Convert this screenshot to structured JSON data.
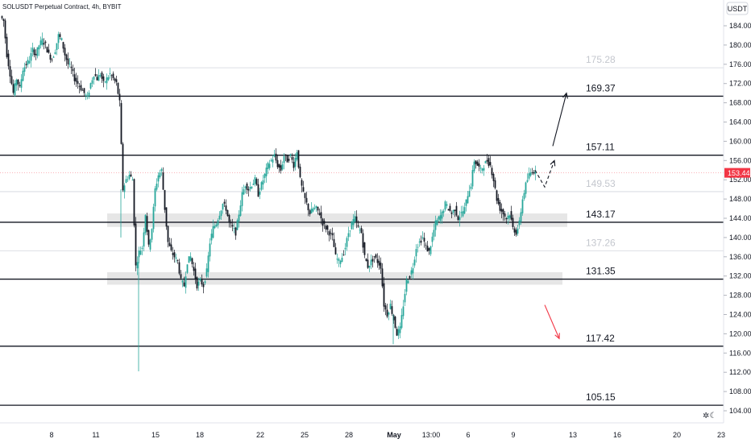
{
  "header": {
    "title": "SOLUSDT Perpetual Contract, 4h, BYBIT"
  },
  "currency_label": "USDT",
  "colors": {
    "up": "#26a69a",
    "down": "#ef5350",
    "candle_body": "#131722",
    "zone": "#e6e6e6",
    "last_price": "#f23645",
    "arrow_down": "#f23645"
  },
  "chart_data": {
    "type": "candlestick",
    "title": "SOLUSDT Perpetual Contract, 4h, BYBIT",
    "ylim": [
      103,
      187
    ],
    "xlim": [
      0,
      932
    ],
    "y_ticks": [
      "104.00",
      "108.00",
      "112.00",
      "116.00",
      "120.00",
      "124.00",
      "128.00",
      "132.00",
      "136.00",
      "140.00",
      "144.00",
      "148.00",
      "152.00",
      "156.00",
      "160.00",
      "164.00",
      "168.00",
      "172.00",
      "176.00",
      "180.00",
      "184.00"
    ],
    "x_ticks": [
      {
        "label": "8",
        "x": 64
      },
      {
        "label": "11",
        "x": 119
      },
      {
        "label": "15",
        "x": 193
      },
      {
        "label": "18",
        "x": 248
      },
      {
        "label": "22",
        "x": 323
      },
      {
        "label": "25",
        "x": 378
      },
      {
        "label": "28",
        "x": 433
      },
      {
        "label": "May",
        "x": 489
      },
      {
        "label": "13:00",
        "x": 535
      },
      {
        "label": "6",
        "x": 581
      },
      {
        "label": "9",
        "x": 637
      },
      {
        "label": "13",
        "x": 711
      },
      {
        "label": "16",
        "x": 766
      },
      {
        "label": "20",
        "x": 840
      },
      {
        "label": "23",
        "x": 895
      }
    ],
    "levels": [
      {
        "label": "175.28",
        "value": 175.28,
        "strong": false
      },
      {
        "label": "169.37",
        "value": 169.37,
        "strong": true
      },
      {
        "label": "157.11",
        "value": 157.11,
        "strong": true
      },
      {
        "label": "149.53",
        "value": 149.53,
        "strong": false
      },
      {
        "label": "143.17",
        "value": 143.17,
        "strong": true
      },
      {
        "label": "137.26",
        "value": 137.26,
        "strong": false
      },
      {
        "label": "131.35",
        "value": 131.35,
        "strong": true
      },
      {
        "label": "117.42",
        "value": 117.42,
        "strong": true
      },
      {
        "label": "105.15",
        "value": 105.15,
        "strong": true
      }
    ],
    "zones": [
      {
        "from": 142.2,
        "to": 145.0,
        "x_start": 133,
        "x_end": 704
      },
      {
        "from": 130.2,
        "to": 132.8,
        "x_start": 133,
        "x_end": 698
      }
    ],
    "last_price": {
      "label": "153.44",
      "value": 153.44
    },
    "price_path": [
      [
        0,
        186
      ],
      [
        4,
        185
      ],
      [
        8,
        178
      ],
      [
        12,
        174
      ],
      [
        16,
        170
      ],
      [
        20,
        173
      ],
      [
        24,
        171
      ],
      [
        28,
        175
      ],
      [
        32,
        176
      ],
      [
        36,
        177
      ],
      [
        40,
        179
      ],
      [
        44,
        178
      ],
      [
        48,
        180
      ],
      [
        52,
        181
      ],
      [
        56,
        180
      ],
      [
        60,
        178
      ],
      [
        64,
        177
      ],
      [
        68,
        179
      ],
      [
        72,
        182
      ],
      [
        76,
        181
      ],
      [
        80,
        178
      ],
      [
        84,
        176
      ],
      [
        88,
        175
      ],
      [
        92,
        173
      ],
      [
        96,
        172
      ],
      [
        100,
        171
      ],
      [
        104,
        170
      ],
      [
        108,
        169
      ],
      [
        112,
        172
      ],
      [
        116,
        174
      ],
      [
        120,
        173
      ],
      [
        124,
        174
      ],
      [
        128,
        172
      ],
      [
        132,
        173
      ],
      [
        136,
        174
      ],
      [
        140,
        173
      ],
      [
        144,
        172
      ],
      [
        148,
        168
      ],
      [
        152,
        150
      ],
      [
        156,
        152
      ],
      [
        160,
        153
      ],
      [
        164,
        152
      ],
      [
        168,
        134
      ],
      [
        172,
        137
      ],
      [
        176,
        138
      ],
      [
        180,
        145
      ],
      [
        184,
        138
      ],
      [
        188,
        142
      ],
      [
        192,
        150
      ],
      [
        196,
        153
      ],
      [
        200,
        154
      ],
      [
        204,
        146
      ],
      [
        208,
        139
      ],
      [
        212,
        137
      ],
      [
        216,
        136
      ],
      [
        220,
        135
      ],
      [
        224,
        131
      ],
      [
        228,
        130
      ],
      [
        232,
        135
      ],
      [
        236,
        136
      ],
      [
        240,
        133
      ],
      [
        244,
        130
      ],
      [
        248,
        131
      ],
      [
        252,
        130
      ],
      [
        256,
        133
      ],
      [
        260,
        139
      ],
      [
        264,
        142
      ],
      [
        268,
        143
      ],
      [
        272,
        145
      ],
      [
        276,
        147
      ],
      [
        280,
        146
      ],
      [
        284,
        143
      ],
      [
        288,
        142
      ],
      [
        292,
        141
      ],
      [
        296,
        145
      ],
      [
        300,
        149
      ],
      [
        304,
        151
      ],
      [
        308,
        150
      ],
      [
        312,
        151
      ],
      [
        316,
        152
      ],
      [
        320,
        149
      ],
      [
        324,
        151
      ],
      [
        328,
        153
      ],
      [
        332,
        155
      ],
      [
        336,
        156
      ],
      [
        340,
        157
      ],
      [
        344,
        155
      ],
      [
        348,
        154
      ],
      [
        352,
        157
      ],
      [
        356,
        156
      ],
      [
        360,
        157
      ],
      [
        364,
        155
      ],
      [
        368,
        158
      ],
      [
        372,
        152
      ],
      [
        376,
        149
      ],
      [
        380,
        147
      ],
      [
        384,
        145
      ],
      [
        388,
        146
      ],
      [
        392,
        146
      ],
      [
        396,
        145
      ],
      [
        400,
        143
      ],
      [
        404,
        142
      ],
      [
        408,
        141
      ],
      [
        412,
        140
      ],
      [
        416,
        136
      ],
      [
        420,
        135
      ],
      [
        424,
        136
      ],
      [
        428,
        138
      ],
      [
        432,
        141
      ],
      [
        436,
        143
      ],
      [
        440,
        144
      ],
      [
        444,
        142
      ],
      [
        448,
        141
      ],
      [
        452,
        136
      ],
      [
        456,
        134
      ],
      [
        460,
        135
      ],
      [
        464,
        136
      ],
      [
        468,
        135
      ],
      [
        472,
        134
      ],
      [
        476,
        126
      ],
      [
        480,
        124
      ],
      [
        484,
        126
      ],
      [
        488,
        123
      ],
      [
        492,
        120
      ],
      [
        496,
        121
      ],
      [
        500,
        126
      ],
      [
        504,
        131
      ],
      [
        508,
        132
      ],
      [
        512,
        134
      ],
      [
        516,
        138
      ],
      [
        520,
        139
      ],
      [
        524,
        140
      ],
      [
        528,
        138
      ],
      [
        532,
        137
      ],
      [
        536,
        140
      ],
      [
        540,
        143
      ],
      [
        544,
        144
      ],
      [
        548,
        145
      ],
      [
        552,
        147
      ],
      [
        556,
        146
      ],
      [
        560,
        145
      ],
      [
        564,
        146
      ],
      [
        568,
        144
      ],
      [
        572,
        145
      ],
      [
        576,
        146
      ],
      [
        580,
        149
      ],
      [
        584,
        151
      ],
      [
        588,
        156
      ],
      [
        592,
        155
      ],
      [
        596,
        154
      ],
      [
        600,
        155
      ],
      [
        604,
        156
      ],
      [
        608,
        155
      ],
      [
        612,
        152
      ],
      [
        616,
        148
      ],
      [
        620,
        146
      ],
      [
        624,
        145
      ],
      [
        628,
        144
      ],
      [
        632,
        145
      ],
      [
        636,
        142
      ],
      [
        640,
        141
      ],
      [
        644,
        143
      ],
      [
        648,
        148
      ],
      [
        652,
        151
      ],
      [
        656,
        153
      ],
      [
        660,
        154
      ],
      [
        664,
        153.44
      ]
    ],
    "forecast_paths": [
      {
        "points": [
          [
            664,
            154
          ],
          [
            676,
            150.5
          ],
          [
            688,
            156
          ]
        ],
        "dashed": true,
        "color": "#131722"
      },
      {
        "points": [
          [
            686,
            159
          ],
          [
            703,
            170
          ]
        ],
        "dashed": false,
        "color": "#131722"
      },
      {
        "points": [
          [
            676,
            126
          ],
          [
            694,
            119
          ]
        ],
        "dashed": false,
        "color": "#f23645"
      }
    ]
  }
}
